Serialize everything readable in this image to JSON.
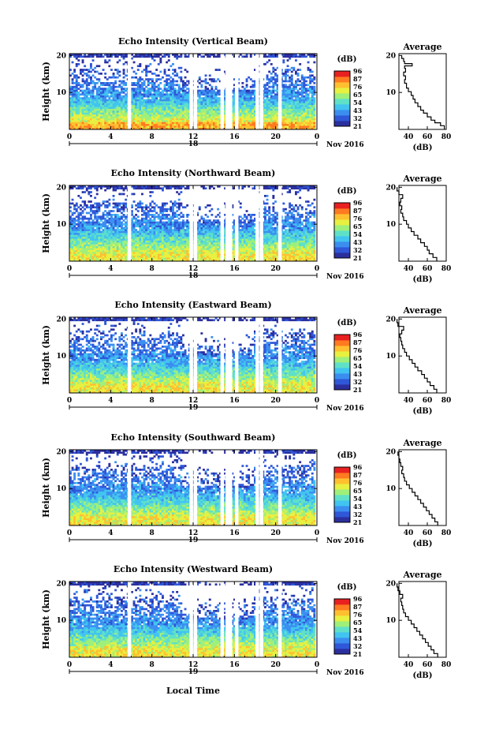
{
  "chart_data": {
    "type": "heatmap",
    "colorbar_unit": "(dB)",
    "colorbar_ticks": [
      "96",
      "87",
      "76",
      "65",
      "54",
      "43",
      "32",
      "21"
    ],
    "xlabel": "Local Time",
    "month_label": "Nov 2016",
    "x_ticks": [
      "0",
      "4",
      "8",
      "12",
      "16",
      "20",
      "0"
    ],
    "y_ticks": [
      "20",
      "10"
    ],
    "ylabel": "Height (km)",
    "avg_title": "Average",
    "avg_xlabel": "(dB)",
    "avg_x_ticks": [
      "40",
      "60",
      "80"
    ],
    "avg_y_ticks": [
      "20",
      "10"
    ],
    "color_scale": [
      "#2b2f9e",
      "#2f57d8",
      "#3b8ef0",
      "#41c4f0",
      "#5fe0c8",
      "#9ff07a",
      "#e8f040",
      "#ffc030",
      "#ff7a20",
      "#e82020"
    ],
    "gaps_hours": [
      5.8,
      11.8,
      12.2,
      14.8,
      15.3,
      15.6,
      16.2,
      18.2,
      18.6,
      20.4
    ],
    "panels": [
      {
        "title": "Echo Intensity (Vertical Beam)",
        "date_label": "18",
        "avg_profile": [
          [
            78,
            1
          ],
          [
            74,
            1.8
          ],
          [
            68,
            2.5
          ],
          [
            64,
            3.4
          ],
          [
            60,
            4.4
          ],
          [
            56,
            5.2
          ],
          [
            53,
            6.2
          ],
          [
            50,
            7.2
          ],
          [
            47,
            8.2
          ],
          [
            45,
            9.2
          ],
          [
            43,
            10.2
          ],
          [
            40,
            11.2
          ],
          [
            38,
            12.5
          ],
          [
            36,
            13.5
          ],
          [
            37,
            14.5
          ],
          [
            35,
            15.5
          ],
          [
            37,
            16.5
          ],
          [
            36,
            17.2
          ],
          [
            44,
            17.8
          ],
          [
            36,
            18.4
          ],
          [
            35,
            19.2
          ],
          [
            33,
            20
          ]
        ]
      },
      {
        "title": "Echo Intensity (Northward Beam)",
        "date_label": "18",
        "avg_profile": [
          [
            70,
            1
          ],
          [
            66,
            2
          ],
          [
            62,
            3
          ],
          [
            60,
            4
          ],
          [
            57,
            5
          ],
          [
            53,
            6
          ],
          [
            50,
            7
          ],
          [
            46,
            8
          ],
          [
            43,
            9
          ],
          [
            40,
            10
          ],
          [
            38,
            11
          ],
          [
            35,
            12
          ],
          [
            34,
            13
          ],
          [
            32,
            14
          ],
          [
            33,
            15
          ],
          [
            31,
            16
          ],
          [
            32,
            17
          ],
          [
            34,
            18
          ],
          [
            30,
            19
          ],
          [
            28,
            20
          ]
        ]
      },
      {
        "title": "Echo Intensity (Eastward Beam)",
        "date_label": "19",
        "avg_profile": [
          [
            70,
            1
          ],
          [
            67,
            2
          ],
          [
            63,
            3
          ],
          [
            60,
            4
          ],
          [
            57,
            5
          ],
          [
            54,
            6
          ],
          [
            50,
            7
          ],
          [
            47,
            8
          ],
          [
            44,
            9
          ],
          [
            41,
            10
          ],
          [
            38,
            11
          ],
          [
            36,
            12
          ],
          [
            34,
            13
          ],
          [
            33,
            14
          ],
          [
            32,
            15
          ],
          [
            31,
            16
          ],
          [
            33,
            17
          ],
          [
            35,
            18
          ],
          [
            29,
            19
          ],
          [
            28,
            20
          ]
        ]
      },
      {
        "title": "Echo Intensity (Southward Beam)",
        "date_label": "19",
        "avg_profile": [
          [
            71,
            1
          ],
          [
            68,
            2
          ],
          [
            65,
            3
          ],
          [
            62,
            4
          ],
          [
            59,
            5
          ],
          [
            56,
            6
          ],
          [
            53,
            7
          ],
          [
            50,
            8
          ],
          [
            47,
            9
          ],
          [
            44,
            10
          ],
          [
            41,
            11
          ],
          [
            38,
            12
          ],
          [
            36,
            13
          ],
          [
            35,
            14
          ],
          [
            33,
            15
          ],
          [
            34,
            16
          ],
          [
            32,
            17
          ],
          [
            31,
            18
          ],
          [
            30,
            19
          ],
          [
            29,
            20
          ]
        ]
      },
      {
        "title": "Echo Intensity (Westward Beam)",
        "date_label": "19",
        "avg_profile": [
          [
            71,
            1
          ],
          [
            67,
            2
          ],
          [
            64,
            3
          ],
          [
            61,
            4
          ],
          [
            58,
            5
          ],
          [
            55,
            6
          ],
          [
            52,
            7
          ],
          [
            49,
            8
          ],
          [
            46,
            9
          ],
          [
            43,
            10
          ],
          [
            40,
            11
          ],
          [
            37,
            12
          ],
          [
            35,
            13
          ],
          [
            34,
            14
          ],
          [
            33,
            15
          ],
          [
            32,
            16
          ],
          [
            34,
            17
          ],
          [
            31,
            18
          ],
          [
            29,
            19
          ],
          [
            28,
            20
          ]
        ]
      }
    ]
  }
}
